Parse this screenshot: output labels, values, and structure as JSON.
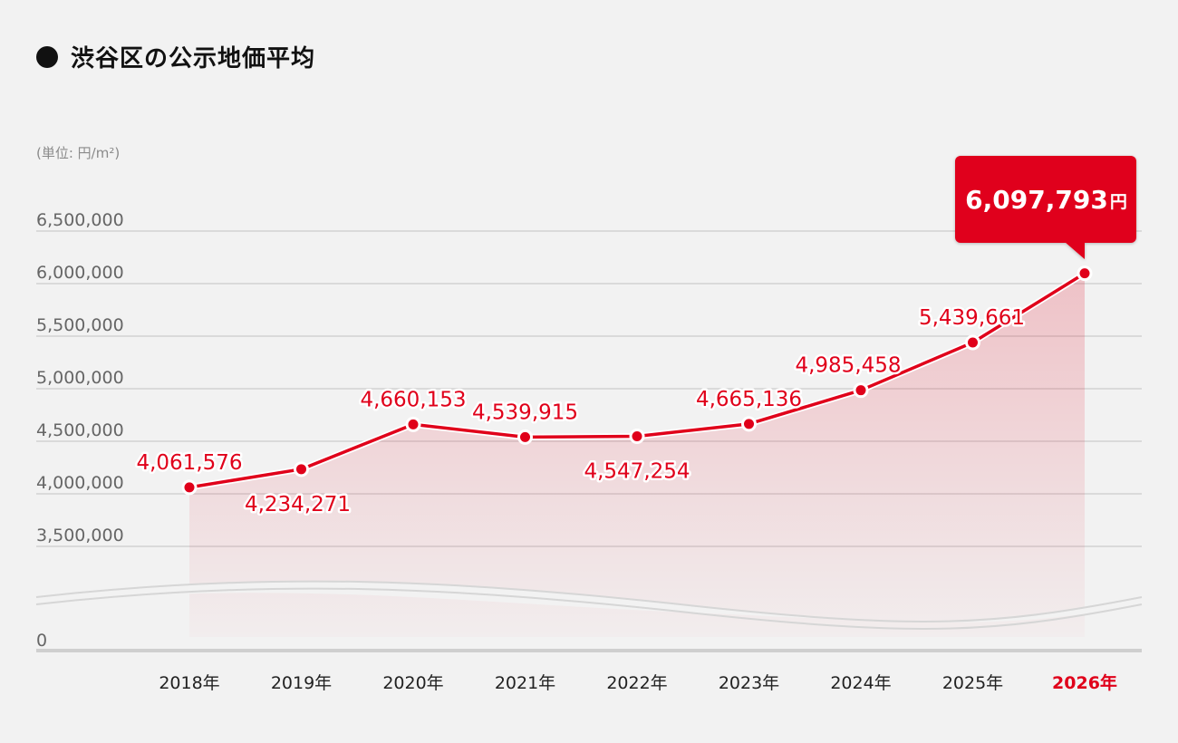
{
  "header": {
    "title": "渋谷区の公示地価平均",
    "unit": "(単位: 円/m²)"
  },
  "colors": {
    "accent": "#e0001a",
    "grid": "#cccccc",
    "background": "#f2f2f2"
  },
  "chart_data": {
    "type": "area",
    "title": "渋谷区の公示地価平均",
    "ylabel": "(単位: 円/m²)",
    "xlabel": "",
    "categories": [
      "2018年",
      "2019年",
      "2020年",
      "2021年",
      "2022年",
      "2023年",
      "2024年",
      "2025年",
      "2026年"
    ],
    "values": [
      4061576,
      4234271,
      4660153,
      4539915,
      4547254,
      4665136,
      4985458,
      5439661,
      6097793
    ],
    "value_labels": [
      "4,061,576",
      "4,234,271",
      "4,660,153",
      "4,539,915",
      "4,547,254",
      "4,665,136",
      "4,985,458",
      "5,439,661",
      "6,097,793"
    ],
    "y_ticks": [
      6500000,
      6000000,
      5500000,
      5000000,
      4500000,
      4000000,
      3500000,
      0
    ],
    "y_tick_labels": [
      "6,500,000",
      "6,000,000",
      "5,500,000",
      "5,000,000",
      "4,500,000",
      "4,000,000",
      "3,500,000",
      "0"
    ],
    "ylim": [
      3500000,
      6500000
    ],
    "axis_break": true,
    "grid": true,
    "highlight": {
      "category": "2026年",
      "value_label": "6,097,793",
      "unit": "円"
    }
  }
}
